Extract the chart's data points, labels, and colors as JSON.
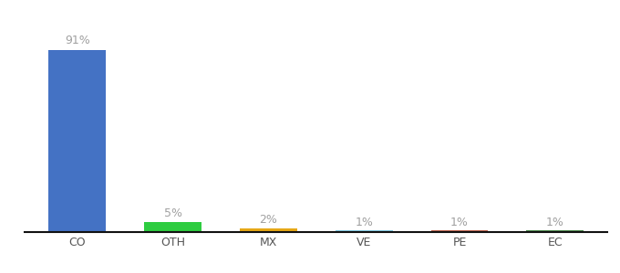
{
  "categories": [
    "CO",
    "OTH",
    "MX",
    "VE",
    "PE",
    "EC"
  ],
  "values": [
    91,
    5,
    2,
    1,
    1,
    1
  ],
  "labels": [
    "91%",
    "5%",
    "2%",
    "1%",
    "1%",
    "1%"
  ],
  "bar_colors": [
    "#4472c4",
    "#2ecc40",
    "#e6a817",
    "#7ec8e3",
    "#c0604a",
    "#4a8a4a"
  ],
  "background_color": "#ffffff",
  "label_color": "#a0a0a0",
  "label_fontsize": 9,
  "tick_fontsize": 9,
  "ylim": [
    0,
    105
  ],
  "bar_width": 0.6
}
